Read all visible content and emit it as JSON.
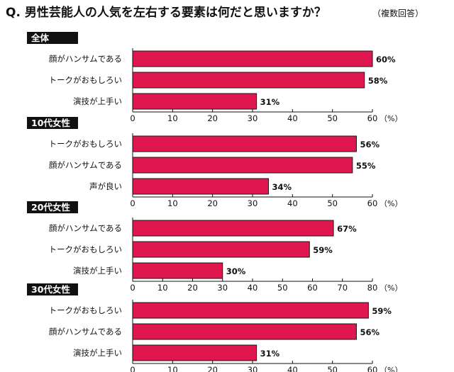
{
  "title": "Q. 男性芸能人の人気を左右する要素は何だと思いますか？",
  "title_note": "（複数回答）",
  "colors": {
    "bar": "#e0174f",
    "bar_stroke": "#1a1a1a",
    "header_bg": "#111111",
    "header_text": "#ffffff"
  },
  "chart_data": [
    {
      "type": "bar",
      "orientation": "horizontal",
      "title": "全体",
      "categories": [
        "顔がハンサムである",
        "トークがおもしろい",
        "演技が上手い"
      ],
      "values": [
        60,
        58,
        31
      ],
      "value_suffix": "%",
      "xlim": [
        0,
        60
      ],
      "ticks": [
        "0",
        "10",
        "20",
        "30",
        "40",
        "50",
        "60"
      ],
      "unit": "（%）",
      "grid": false
    },
    {
      "type": "bar",
      "orientation": "horizontal",
      "title": "10代女性",
      "categories": [
        "トークがおもしろい",
        "顔がハンサムである",
        "声が良い"
      ],
      "values": [
        56,
        55,
        34
      ],
      "value_suffix": "%",
      "xlim": [
        0,
        60
      ],
      "ticks": [
        "0",
        "10",
        "20",
        "30",
        "40",
        "50",
        "60"
      ],
      "unit": "（%）",
      "grid": false
    },
    {
      "type": "bar",
      "orientation": "horizontal",
      "title": "20代女性",
      "categories": [
        "顔がハンサムである",
        "トークがおもしろい",
        "演技が上手い"
      ],
      "values": [
        67,
        59,
        30
      ],
      "value_suffix": "%",
      "xlim": [
        0,
        80
      ],
      "ticks": [
        "0",
        "10",
        "20",
        "30",
        "40",
        "50",
        "60",
        "70",
        "80"
      ],
      "unit": "（%）",
      "grid": false
    },
    {
      "type": "bar",
      "orientation": "horizontal",
      "title": "30代女性",
      "categories": [
        "トークがおもしろい",
        "顔がハンサムである",
        "演技が上手い"
      ],
      "values": [
        59,
        56,
        31
      ],
      "value_suffix": "%",
      "xlim": [
        0,
        60
      ],
      "ticks": [
        "0",
        "10",
        "20",
        "30",
        "40",
        "50",
        "60"
      ],
      "unit": "（%）",
      "grid": false
    }
  ]
}
